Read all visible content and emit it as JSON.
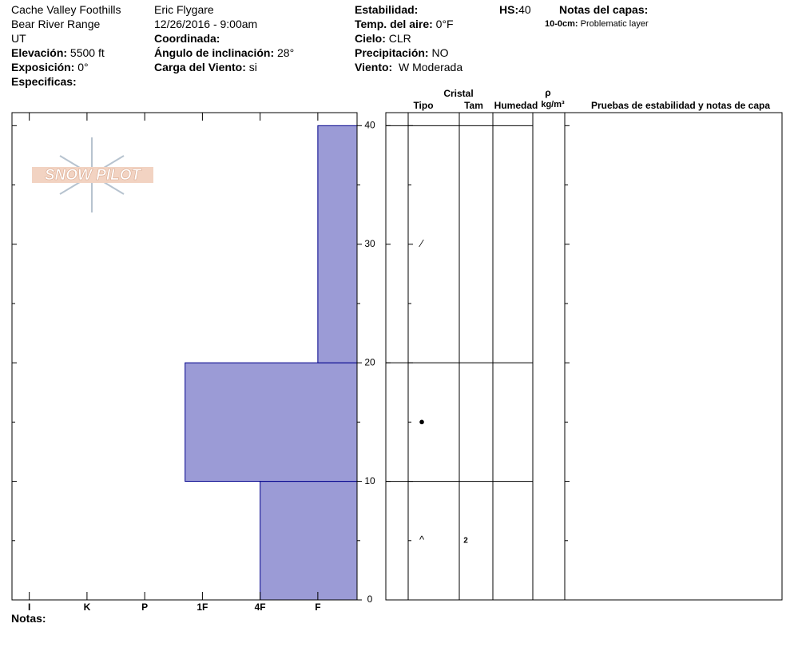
{
  "header": {
    "location": "Cache Valley Foothills",
    "range": "Bear River Range",
    "state": "UT",
    "elevation_label": "Elevación:",
    "elevation": "5500 ft",
    "aspect_label": "Exposición:",
    "aspect": "0°",
    "specifics_label": "Especificas:",
    "observer": "Eric Flygare",
    "datetime": "12/26/2016 - 9:00am",
    "coord_label": "Coordinada:",
    "slope_label": "Ángulo de inclinación:",
    "slope": "28°",
    "wind_load_label": "Carga del Viento:",
    "wind_load": "si",
    "stability_label": "Estabilidad:",
    "air_temp_label": "Temp. del aire:",
    "air_temp": "0°F",
    "sky_label": "Cielo:",
    "sky": "CLR",
    "precip_label": "Precipitación:",
    "precip": "NO",
    "wind_label": "Viento:",
    "wind": "W Moderada",
    "hs_label": "HS:",
    "hs": "40",
    "layer_notes_label": "Notas del capas:",
    "layer_note_range": "10-0cm:",
    "layer_note": "Problematic layer"
  },
  "logo": "SNOW PILOT",
  "notes_label": "Notas:",
  "columns": {
    "crystal": "Cristal",
    "type": "Tipo",
    "size": "Tam",
    "moisture": "Humedad",
    "rho": "ρ",
    "density_unit": "kg/m³",
    "tests": "Pruebas de estabilidad y notas de capa"
  },
  "chart_data": {
    "type": "bar",
    "orientation": "horizontal",
    "color": "#9b9bd6",
    "xlim": [
      6.3,
      0.32
    ],
    "xticks": [
      {
        "value": 6,
        "label": "I"
      },
      {
        "value": 5,
        "label": "K"
      },
      {
        "value": 4,
        "label": "P"
      },
      {
        "value": 3,
        "label": "1F"
      },
      {
        "value": 2,
        "label": "4F"
      },
      {
        "value": 1,
        "label": "F"
      }
    ],
    "ylim": [
      0,
      41.1
    ],
    "yticks": [
      0,
      10,
      20,
      30,
      40
    ],
    "minor_yticks": [
      5,
      15,
      25,
      35
    ],
    "layers": [
      {
        "bottom": 0,
        "top": 10,
        "hardness": 2,
        "grain": "^",
        "grain_size": "2"
      },
      {
        "bottom": 10,
        "top": 20,
        "hardness": 3.3,
        "grain": "●"
      },
      {
        "bottom": 20,
        "top": 40,
        "hardness": 1,
        "grain": "⁄"
      }
    ]
  }
}
